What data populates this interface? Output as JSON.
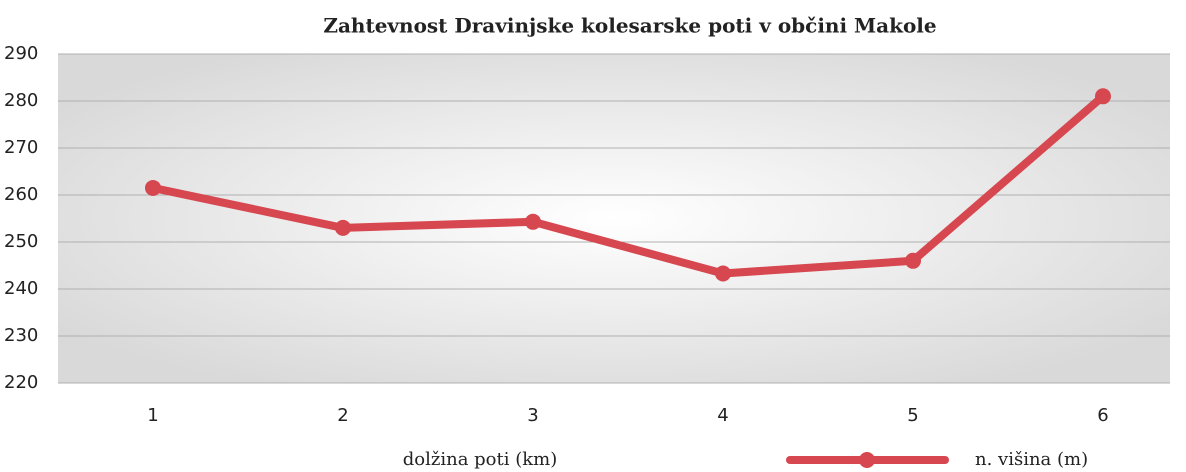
{
  "chart_data": {
    "type": "line",
    "title": "Zahtevnost Dravinjske kolesarske poti v občini Makole",
    "x_label": "dolžina poti (km)",
    "categories": [
      "1",
      "2",
      "3",
      "4",
      "5",
      "6"
    ],
    "series": [
      {
        "name": "n. višina (m)",
        "color": "#d6474f",
        "values": [
          261.5,
          253,
          254.3,
          243.3,
          246,
          281
        ]
      }
    ],
    "ylim": [
      220,
      290
    ],
    "yticks": [
      220,
      230,
      240,
      250,
      260,
      270,
      280,
      290
    ],
    "grid": true,
    "legend": "bottom-right"
  }
}
